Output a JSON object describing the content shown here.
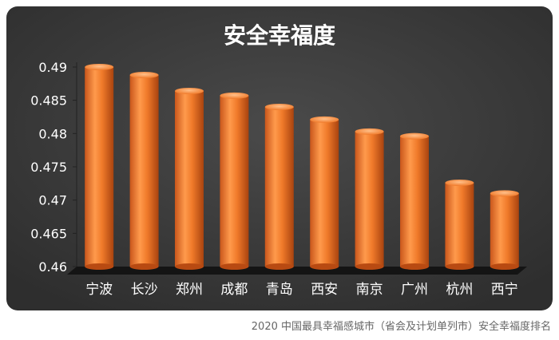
{
  "chart_data": {
    "type": "bar",
    "title": "安全幸福度",
    "categories": [
      "宁波",
      "长沙",
      "郑州",
      "成都",
      "青岛",
      "西安",
      "南京",
      "广州",
      "杭州",
      "西宁"
    ],
    "values": [
      0.49,
      0.4888,
      0.4864,
      0.4857,
      0.484,
      0.4821,
      0.4803,
      0.4796,
      0.4726,
      0.471
    ],
    "ylim": [
      0.46,
      0.49
    ],
    "y_ticks": [
      "0.46",
      "0.465",
      "0.47",
      "0.475",
      "0.48",
      "0.485",
      "0.49"
    ],
    "xlabel": "",
    "ylabel": "",
    "grid": false,
    "bar_color": "#f07a2a",
    "background": "#3a3a3a"
  },
  "caption": "2020 中国最具幸福感城市（省会及计划单列市）安全幸福度排名"
}
